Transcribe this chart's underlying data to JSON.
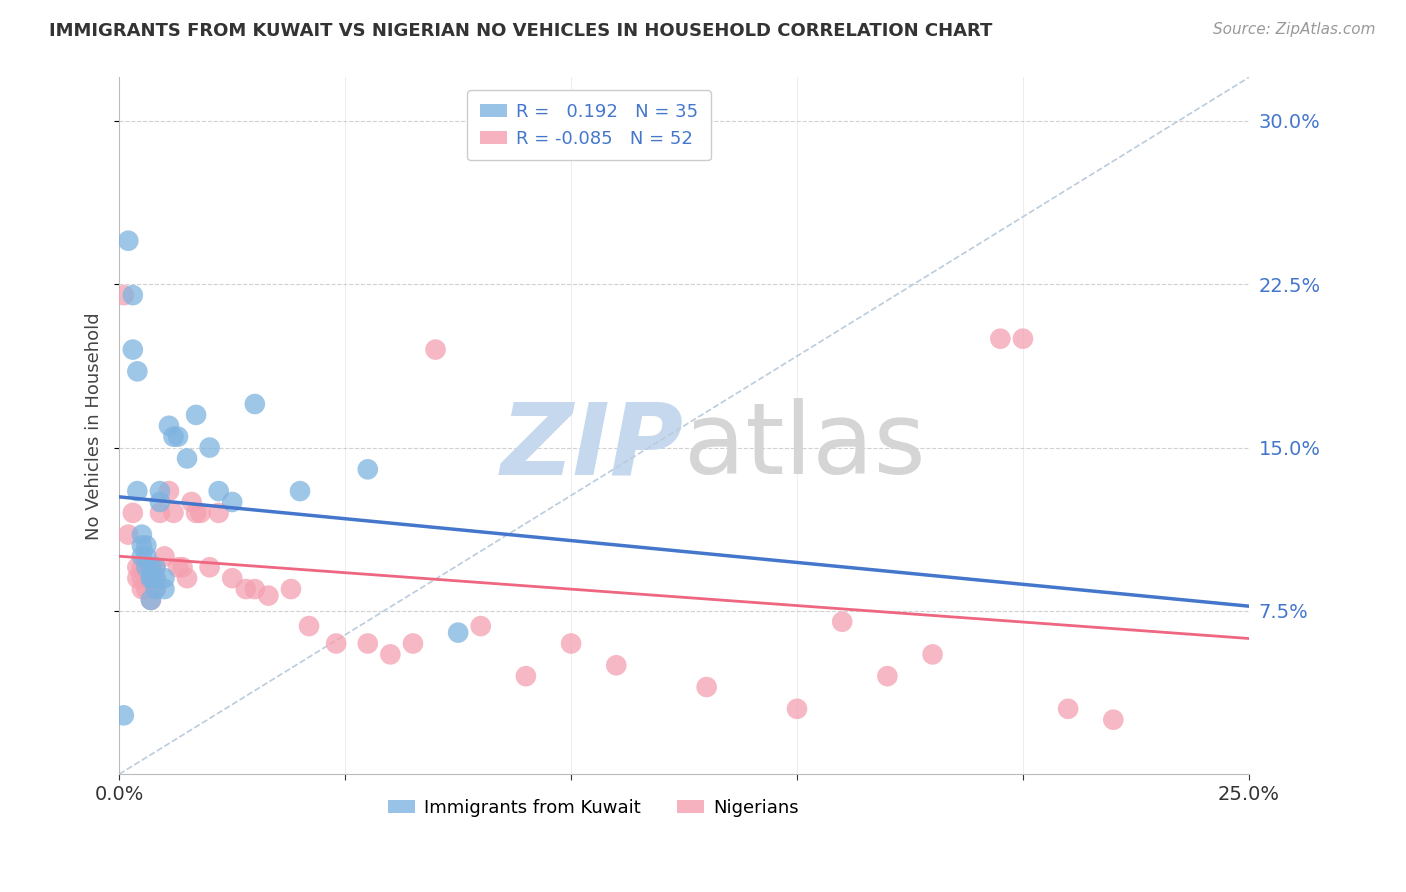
{
  "title": "IMMIGRANTS FROM KUWAIT VS NIGERIAN NO VEHICLES IN HOUSEHOLD CORRELATION CHART",
  "source": "Source: ZipAtlas.com",
  "ylabel_left": "No Vehicles in Household",
  "right_ytick_values": [
    0.075,
    0.15,
    0.225,
    0.3
  ],
  "xmin": 0.0,
  "xmax": 0.25,
  "ymin": 0.0,
  "ymax": 0.32,
  "kuwait_color": "#7EB3E0",
  "nigerian_color": "#F4A0B0",
  "kuwait_line_color": "#4477CC",
  "nigerian_line_color": "#EE6680",
  "diagonal_color": "#BBCCDD",
  "background_color": "#FFFFFF",
  "grid_color": "#CCCCCC",
  "watermark_color": "#D8E8F5",
  "legend_R_kuwait": "R =   0.192",
  "legend_N_kuwait": "N = 35",
  "legend_R_nigerian": "R = -0.085",
  "legend_N_nigerian": "N = 52",
  "kuwait_label": "Immigrants from Kuwait",
  "nigerian_label": "Nigerians",
  "kuwait_scatter_x": [
    0.001,
    0.002,
    0.003,
    0.003,
    0.004,
    0.004,
    0.005,
    0.005,
    0.005,
    0.006,
    0.006,
    0.006,
    0.007,
    0.007,
    0.007,
    0.007,
    0.008,
    0.008,
    0.008,
    0.009,
    0.009,
    0.01,
    0.01,
    0.011,
    0.012,
    0.013,
    0.015,
    0.017,
    0.02,
    0.022,
    0.025,
    0.03,
    0.04,
    0.055,
    0.075
  ],
  "kuwait_scatter_y": [
    0.027,
    0.245,
    0.22,
    0.195,
    0.185,
    0.13,
    0.11,
    0.105,
    0.1,
    0.105,
    0.1,
    0.095,
    0.095,
    0.09,
    0.09,
    0.08,
    0.095,
    0.09,
    0.085,
    0.13,
    0.125,
    0.09,
    0.085,
    0.16,
    0.155,
    0.155,
    0.145,
    0.165,
    0.15,
    0.13,
    0.125,
    0.17,
    0.13,
    0.14,
    0.065
  ],
  "nigerian_scatter_x": [
    0.001,
    0.002,
    0.003,
    0.004,
    0.004,
    0.005,
    0.005,
    0.005,
    0.006,
    0.006,
    0.007,
    0.007,
    0.007,
    0.008,
    0.008,
    0.008,
    0.009,
    0.01,
    0.011,
    0.012,
    0.013,
    0.014,
    0.015,
    0.016,
    0.017,
    0.018,
    0.02,
    0.022,
    0.025,
    0.028,
    0.03,
    0.033,
    0.038,
    0.042,
    0.048,
    0.055,
    0.06,
    0.065,
    0.07,
    0.08,
    0.09,
    0.1,
    0.11,
    0.13,
    0.15,
    0.16,
    0.17,
    0.18,
    0.195,
    0.2,
    0.21,
    0.22
  ],
  "nigerian_scatter_y": [
    0.22,
    0.11,
    0.12,
    0.09,
    0.095,
    0.095,
    0.09,
    0.085,
    0.09,
    0.085,
    0.095,
    0.09,
    0.08,
    0.095,
    0.09,
    0.085,
    0.12,
    0.1,
    0.13,
    0.12,
    0.095,
    0.095,
    0.09,
    0.125,
    0.12,
    0.12,
    0.095,
    0.12,
    0.09,
    0.085,
    0.085,
    0.082,
    0.085,
    0.068,
    0.06,
    0.06,
    0.055,
    0.06,
    0.195,
    0.068,
    0.045,
    0.06,
    0.05,
    0.04,
    0.03,
    0.07,
    0.045,
    0.055,
    0.2,
    0.2,
    0.03,
    0.025
  ]
}
